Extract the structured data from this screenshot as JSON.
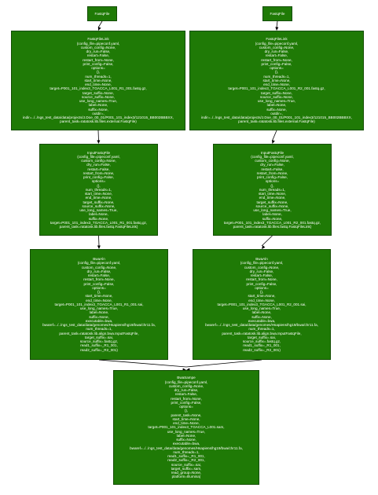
{
  "nodes": [
    {
      "id": "fastq1",
      "lines": [
        "FastqFile"
      ]
    },
    {
      "id": "fastq2",
      "lines": [
        "FastqFile"
      ]
    },
    {
      "id": "link1",
      "lines": [
        "FastqFileLink",
        "(config_file=pipeconf.yaml,",
        "custom_config=None,",
        "dry_run=False,",
        "restart=False,",
        "restart_from=None,",
        "print_config=False,",
        "options=",
        "(),",
        "num_threads=1,",
        "start_time=None,",
        "end_time=None,",
        "target=P001_101_index3_TGACCA_L001_R1_001.fastq.gz,",
        "target_suffix=None,",
        "source_suffix=None,",
        "use_long_names=True,",
        "label=None,",
        "suffix=None,",
        "outdir=,",
        "indir=../../ngs_test_data/data/projects/J.Doe_00_01/P001_101_index3/121015_BB002BBBXX,",
        "parent_task=ratatosk.lib.files.external.FastqFile)"
      ]
    },
    {
      "id": "link2",
      "lines": [
        "FastqFileLink",
        "(config_file=pipeconf.yaml,",
        "custom_config=None,",
        "dry_run=False,",
        "restart=False,",
        "restart_from=None,",
        "print_config=False,",
        "options=",
        "(),",
        "num_threads=1,",
        "start_time=None,",
        "end_time=None,",
        "target=P001_101_index3_TGACCA_L001_R2_001.fastq.gz,",
        "target_suffix=None,",
        "source_suffix=None,",
        "use_long_names=True,",
        "label=None,",
        "suffix=None,",
        "outdir=,",
        "indir=../../ngs_test_data/data/projects/J.Doe_00_01/P001_101_index3/121015_BB002BBBXX,",
        "parent_task=ratatosk.lib.files.external.FastqFile)"
      ]
    },
    {
      "id": "input1",
      "lines": [
        "InputFastqFile",
        "(config_file=pipeconf.yaml,",
        "custom_config=None,",
        "dry_run=False,",
        "restart=False,",
        "restart_from=None,",
        "print_config=False,",
        "options=",
        "(),",
        "num_threads=1,",
        "start_time=None,",
        "end_time=None,",
        "target_suffix=None,",
        "source_suffix=None,",
        "use_long_names=True,",
        "label=None,",
        "suffix=None,",
        "target=P001_101_index3_TGACCA_L001_R1_001.fastq.gz,",
        "parent_task=ratatosk.lib.files.fastq.FastqFileLink)"
      ]
    },
    {
      "id": "input2",
      "lines": [
        "InputFastqFile",
        "(config_file=pipeconf.yaml,",
        "custom_config=None,",
        "dry_run=False,",
        "restart=False,",
        "restart_from=None,",
        "print_config=False,",
        "options=",
        "(),",
        "num_threads=1,",
        "start_time=None,",
        "end_time=None,",
        "target_suffix=None,",
        "source_suffix=None,",
        "use_long_names=True,",
        "label=None,",
        "suffix=None,",
        "target=P001_101_index3_TGACCA_L001_R2_001.fastq.gz,",
        "parent_task=ratatosk.lib.files.fastq.FastqFileLink)"
      ]
    },
    {
      "id": "bwa1",
      "lines": [
        "BwaAln",
        "(config_file=pipeconf.yaml,",
        "custom_config=None,",
        "dry_run=False,",
        "restart=False,",
        "restart_from=None,",
        "print_config=False,",
        "options=",
        "(),",
        "start_time=None,",
        "end_time=None,",
        "target=P001_101_index3_TGACCA_L001_R1_001.sai,",
        "use_long_names=True,",
        "label=None,",
        "suffix=None,",
        "executable=bwa,",
        "bwaref=../../ngs_test_data/data/genomes/Hsapiens/hg19/bwa/chr11.fa,",
        "num_threads=1,",
        "parent_task=ratatosk.lib.align.bwa.InputFastqFile,",
        "target_suffix=.sai,",
        "source_suffix=.fastq.gz,",
        "read1_suffix=_R1_001,",
        "read2_suffix=_R2_001)"
      ]
    },
    {
      "id": "bwa2",
      "lines": [
        "BwaAln",
        "(config_file=pipeconf.yaml,",
        "custom_config=None,",
        "dry_run=False,",
        "restart=False,",
        "restart_from=None,",
        "print_config=False,",
        "options=",
        "(),",
        "start_time=None,",
        "end_time=None,",
        "target=P001_101_index3_TGACCA_L001_R2_001.sai,",
        "use_long_names=True,",
        "label=None,",
        "suffix=None,",
        "executable=bwa,",
        "bwaref=../../ngs_test_data/data/genomes/Hsapiens/hg19/bwa/chr11.fa,",
        "num_threads=1,",
        "parent_task=ratatosk.lib.align.bwa.InputFastqFile,",
        "target_suffix=.sai,",
        "source_suffix=.fastq.gz,",
        "read1_suffix=_R1_001,",
        "read2_suffix=_R2_001)"
      ]
    },
    {
      "id": "sampe",
      "lines": [
        "BwaSampe",
        "(config_file=pipeconf.yaml,",
        "custom_config=None,",
        "dry_run=False,",
        "restart=False,",
        "restart_from=None,",
        "print_config=False,",
        "options=",
        "(),",
        "parent_task=None,",
        "start_time=None,",
        "end_time=None,",
        "target=P001_101_index3_TGACCA_L001.sam,",
        "use_long_names=True,",
        "label=None,",
        "suffix=None,",
        "executable=bwa,",
        "bwaref=../../ngs_test_data/data/genomes/Hsapiens/hg19/bwa/chr11.fa,",
        "num_threads=1,",
        "read1_suffix=_R1_001,",
        "read2_suffix=_R2_001,",
        "source_suffix=.sai,",
        "target_suffix=.sam,",
        "read_group=None,",
        "platform=Illumina)"
      ]
    }
  ],
  "edges": [
    {
      "from": "fastq1",
      "to": "link1"
    },
    {
      "from": "fastq2",
      "to": "link2"
    },
    {
      "from": "link1",
      "to": "input1"
    },
    {
      "from": "link2",
      "to": "input2"
    },
    {
      "from": "input1",
      "to": "bwa1"
    },
    {
      "from": "input2",
      "to": "bwa2"
    },
    {
      "from": "bwa1",
      "to": "sampe"
    },
    {
      "from": "bwa2",
      "to": "sampe"
    }
  ],
  "colors": {
    "node_fill": "#1f7a06",
    "node_border": "#134d02",
    "node_text": "#ffffff",
    "edge": "#000000"
  }
}
